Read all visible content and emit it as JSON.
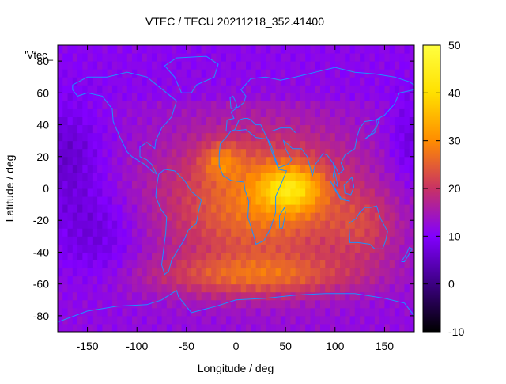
{
  "chart_data": {
    "type": "heatmap",
    "title": "VTEC / TECU 20211218_352.41400",
    "xlabel": "Longitude / deg",
    "ylabel": "Latitude / deg",
    "xlim": [
      -180,
      180
    ],
    "ylim": [
      -90,
      90
    ],
    "x_ticks": [
      -150,
      -100,
      -50,
      0,
      50,
      100,
      150
    ],
    "y_ticks": [
      -80,
      -60,
      -40,
      -20,
      0,
      20,
      40,
      60,
      80
    ],
    "colorbar": {
      "range": [
        -10,
        50
      ],
      "ticks": [
        -10,
        0,
        10,
        20,
        30,
        40,
        50
      ],
      "colors": [
        "#000000",
        "#3c0082",
        "#8200ff",
        "#c83264",
        "#ff8c00",
        "#ffe000",
        "#ffff40"
      ]
    },
    "legend_fragment": "'Vtec_",
    "grid": false,
    "coastline_color": "#1e90ff",
    "features": {
      "equatorial_peak": {
        "lon": 55,
        "lat": 0,
        "value": 45
      },
      "secondary_peak": {
        "lon": -15,
        "lat": 18,
        "value": 38
      },
      "southern_band": {
        "lon": 20,
        "lat": -55,
        "value": 28
      },
      "background_night": 12,
      "background_polar": 8
    }
  }
}
